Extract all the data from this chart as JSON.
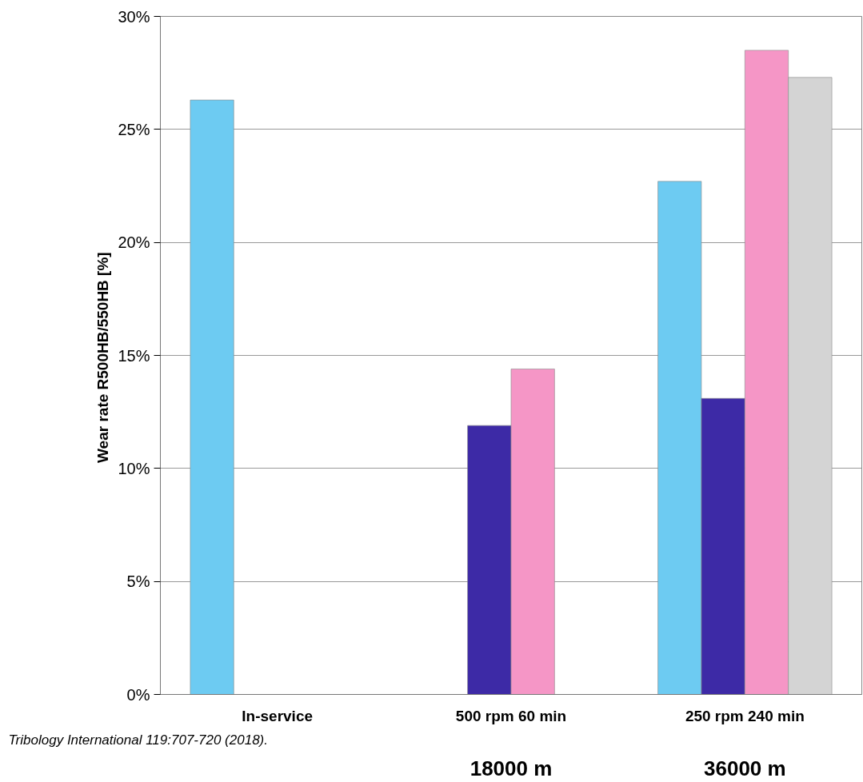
{
  "chart_data": {
    "type": "bar",
    "ylabel": "Wear rate  R500HB/550HB [%]",
    "categories": [
      "In-service",
      "500 rpm 60 min",
      "250 rpm 240 min"
    ],
    "series": [
      {
        "color": "#6dcbf2",
        "values": [
          26.3,
          null,
          22.7
        ]
      },
      {
        "color": "#3d2aa6",
        "values": [
          null,
          11.9,
          13.1
        ]
      },
      {
        "color": "#f596c6",
        "values": [
          null,
          14.4,
          28.5
        ]
      },
      {
        "color": "#d4d4d4",
        "values": [
          null,
          null,
          27.3
        ]
      }
    ],
    "ylim": [
      0,
      30
    ],
    "yticks": [
      {
        "value": 0,
        "label": "0%"
      },
      {
        "value": 5,
        "label": "5%"
      },
      {
        "value": 10,
        "label": "10%"
      },
      {
        "value": 15,
        "label": "15%"
      },
      {
        "value": 20,
        "label": "20%"
      },
      {
        "value": 25,
        "label": "25%"
      },
      {
        "value": 30,
        "label": "30%"
      }
    ],
    "grid": "y",
    "annotations": [
      "18000 m",
      "36000 m",
      "Tribology International 119:707-720 (2018)."
    ]
  }
}
